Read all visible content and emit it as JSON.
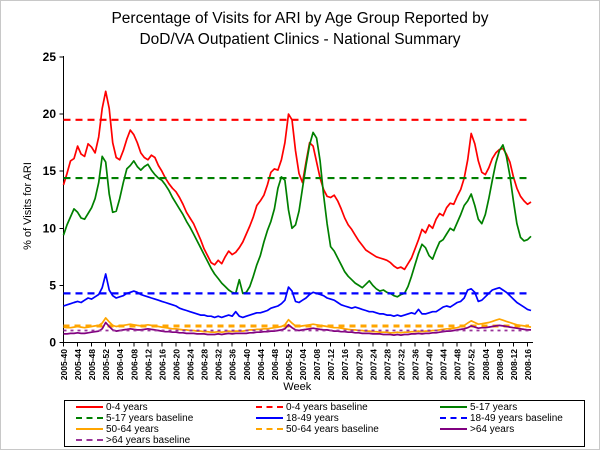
{
  "title": {
    "full": "Percentage of Visits for ARI by Age Group Reported by DoD/VA Outpatient Clinics - National Summary",
    "line1": "Percentage of Visits for ARI by Age Group Reported by",
    "line2": "DoD/VA Outpatient Clinics - National Summary"
  },
  "chart_data": {
    "type": "line",
    "title": "Percentage of Visits for ARI by Age Group Reported by DoD/VA Outpatient Clinics - National Summary",
    "xlabel": "Week",
    "ylabel": "% of Visits for ARI",
    "ylim": [
      0,
      25
    ],
    "y_ticks": [
      0,
      5,
      10,
      15,
      20,
      25
    ],
    "x_start_week": "2005-40",
    "x_end_week": "2008-17",
    "x_tick_every_weeks": 4,
    "x_tick_labels": [
      "2005-40",
      "2005-44",
      "2005-48",
      "2005-52",
      "2006-04",
      "2006-08",
      "2006-12",
      "2006-16",
      "2006-20",
      "2006-24",
      "2006-28",
      "2006-32",
      "2006-36",
      "2006-40",
      "2006-44",
      "2006-48",
      "2006-52",
      "2007-04",
      "2007-08",
      "2007-12",
      "2007-16",
      "2007-20",
      "2007-24",
      "2007-28",
      "2007-32",
      "2007-36",
      "2007-40",
      "2007-44",
      "2007-48",
      "2007-52",
      "2008-04",
      "2008-08",
      "2008-12",
      "2008-16"
    ],
    "grid": false,
    "legend_position": "bottom",
    "series": [
      {
        "name": "0-4 years",
        "color": "#FF0000",
        "style": "solid",
        "values": [
          13.8,
          14.8,
          15.9,
          16.1,
          17.2,
          16.5,
          16.3,
          17.4,
          17.1,
          16.6,
          18.0,
          20.5,
          22.0,
          20.5,
          17.5,
          16.2,
          16.0,
          16.8,
          17.8,
          18.6,
          18.2,
          17.5,
          16.6,
          16.2,
          16.0,
          16.4,
          16.2,
          15.5,
          15.0,
          14.4,
          13.9,
          13.5,
          13.2,
          12.7,
          12.1,
          11.4,
          10.9,
          10.4,
          9.7,
          9.0,
          8.2,
          7.6,
          7.0,
          6.8,
          7.2,
          6.9,
          7.5,
          8.0,
          7.7,
          7.9,
          8.3,
          8.8,
          9.5,
          10.2,
          11.0,
          12.0,
          12.4,
          12.9,
          13.8,
          14.9,
          15.2,
          15.1,
          16.0,
          17.5,
          20.0,
          19.5,
          16.8,
          14.8,
          14.0,
          15.8,
          17.5,
          17.2,
          15.8,
          14.4,
          13.4,
          12.8,
          12.7,
          12.9,
          12.4,
          11.7,
          10.9,
          10.3,
          9.9,
          9.4,
          8.9,
          8.5,
          8.1,
          7.9,
          7.7,
          7.5,
          7.4,
          7.3,
          7.2,
          7.0,
          6.7,
          6.5,
          6.6,
          6.4,
          6.9,
          7.4,
          8.2,
          9.0,
          9.9,
          9.6,
          10.3,
          10.0,
          10.8,
          11.3,
          11.1,
          11.8,
          12.2,
          12.1,
          12.8,
          13.4,
          14.4,
          16.0,
          18.3,
          17.4,
          15.9,
          14.9,
          14.7,
          15.3,
          16.1,
          16.6,
          16.9,
          17.0,
          16.5,
          15.8,
          14.5,
          13.5,
          12.8,
          12.4,
          12.1,
          12.3
        ]
      },
      {
        "name": "5-17 years",
        "color": "#008000",
        "style": "solid",
        "values": [
          9.4,
          10.3,
          11.0,
          11.7,
          11.4,
          10.9,
          10.8,
          11.3,
          11.8,
          12.6,
          14.0,
          16.3,
          15.8,
          13.0,
          11.4,
          11.5,
          12.6,
          14.0,
          15.2,
          15.5,
          15.9,
          15.4,
          15.1,
          15.4,
          15.6,
          15.1,
          14.7,
          14.4,
          14.2,
          13.8,
          13.3,
          12.7,
          12.2,
          11.7,
          11.2,
          10.6,
          10.1,
          9.5,
          8.9,
          8.3,
          7.7,
          7.1,
          6.5,
          6.0,
          5.6,
          5.2,
          4.9,
          4.6,
          4.4,
          4.3,
          5.5,
          4.3,
          4.4,
          4.9,
          5.8,
          6.8,
          7.6,
          8.8,
          9.8,
          10.6,
          11.7,
          13.5,
          14.5,
          14.2,
          11.6,
          10.0,
          10.3,
          11.5,
          13.5,
          15.5,
          17.3,
          18.4,
          17.9,
          15.9,
          12.9,
          10.4,
          8.4,
          8.0,
          7.4,
          6.8,
          6.2,
          5.8,
          5.5,
          5.2,
          5.0,
          4.8,
          5.1,
          5.4,
          5.0,
          4.7,
          4.5,
          4.6,
          4.4,
          4.3,
          4.1,
          4.0,
          4.2,
          4.3,
          4.9,
          5.8,
          6.8,
          7.8,
          8.6,
          8.3,
          7.6,
          7.3,
          8.1,
          8.8,
          9.0,
          9.5,
          10.0,
          9.8,
          10.5,
          11.2,
          12.0,
          12.4,
          13.0,
          12.0,
          10.8,
          10.4,
          11.2,
          12.6,
          14.2,
          15.7,
          16.8,
          17.3,
          16.3,
          14.6,
          12.4,
          10.4,
          9.2,
          8.9,
          9.0,
          9.3
        ]
      },
      {
        "name": "18-49 years",
        "color": "#0000FF",
        "style": "solid",
        "values": [
          3.2,
          3.3,
          3.4,
          3.5,
          3.6,
          3.5,
          3.7,
          3.9,
          3.8,
          4.0,
          4.2,
          4.8,
          6.0,
          4.6,
          4.1,
          3.9,
          4.0,
          4.1,
          4.3,
          4.4,
          4.5,
          4.4,
          4.2,
          4.1,
          4.0,
          3.9,
          3.8,
          3.7,
          3.6,
          3.5,
          3.4,
          3.3,
          3.2,
          3.0,
          2.9,
          2.8,
          2.7,
          2.6,
          2.5,
          2.4,
          2.4,
          2.3,
          2.3,
          2.2,
          2.3,
          2.2,
          2.3,
          2.4,
          2.3,
          2.7,
          2.3,
          2.2,
          2.3,
          2.4,
          2.5,
          2.6,
          2.6,
          2.7,
          2.8,
          3.0,
          3.1,
          3.2,
          3.4,
          3.7,
          4.85,
          4.5,
          3.6,
          3.5,
          3.7,
          3.9,
          4.2,
          4.4,
          4.3,
          4.2,
          4.1,
          3.9,
          3.8,
          3.7,
          3.5,
          3.3,
          3.2,
          3.1,
          3.0,
          3.1,
          3.0,
          2.9,
          2.8,
          2.7,
          2.7,
          2.6,
          2.5,
          2.5,
          2.4,
          2.4,
          2.3,
          2.4,
          2.3,
          2.4,
          2.5,
          2.6,
          2.5,
          2.9,
          2.5,
          2.5,
          2.6,
          2.7,
          2.7,
          2.9,
          3.1,
          3.2,
          3.1,
          3.3,
          3.5,
          3.6,
          3.9,
          4.6,
          4.7,
          4.4,
          3.6,
          3.7,
          4.0,
          4.3,
          4.6,
          4.7,
          4.8,
          4.6,
          4.4,
          4.1,
          3.8,
          3.5,
          3.3,
          3.1,
          2.9,
          2.8
        ]
      },
      {
        "name": "50-64 years",
        "color": "#FFA500",
        "style": "solid",
        "values": [
          1.35,
          1.3,
          1.3,
          1.35,
          1.4,
          1.35,
          1.3,
          1.35,
          1.4,
          1.45,
          1.5,
          1.7,
          2.15,
          1.8,
          1.5,
          1.4,
          1.45,
          1.5,
          1.55,
          1.6,
          1.55,
          1.5,
          1.45,
          1.5,
          1.55,
          1.5,
          1.45,
          1.4,
          1.35,
          1.3,
          1.25,
          1.2,
          1.2,
          1.15,
          1.1,
          1.1,
          1.05,
          1.05,
          1.0,
          1.0,
          0.95,
          0.95,
          0.9,
          0.9,
          0.95,
          0.9,
          0.95,
          1.0,
          0.95,
          1.0,
          1.0,
          1.0,
          1.05,
          1.1,
          1.1,
          1.15,
          1.15,
          1.2,
          1.2,
          1.25,
          1.3,
          1.35,
          1.4,
          1.55,
          2.0,
          1.7,
          1.45,
          1.4,
          1.45,
          1.5,
          1.55,
          1.6,
          1.55,
          1.5,
          1.45,
          1.4,
          1.35,
          1.3,
          1.3,
          1.25,
          1.2,
          1.15,
          1.1,
          1.1,
          1.05,
          1.05,
          1.0,
          1.0,
          0.95,
          0.95,
          0.9,
          0.9,
          0.9,
          0.85,
          0.85,
          0.9,
          0.85,
          0.9,
          0.9,
          0.95,
          0.95,
          1.0,
          0.95,
          1.0,
          1.0,
          1.05,
          1.05,
          1.1,
          1.15,
          1.2,
          1.2,
          1.25,
          1.3,
          1.4,
          1.5,
          1.7,
          1.9,
          1.75,
          1.6,
          1.65,
          1.7,
          1.75,
          1.85,
          1.95,
          2.05,
          1.95,
          1.85,
          1.75,
          1.65,
          1.55,
          1.5,
          1.45,
          1.4,
          1.35
        ]
      },
      {
        "name": ">64 years",
        "color": "#800080",
        "style": "solid",
        "values": [
          0.75,
          0.75,
          0.8,
          0.8,
          0.85,
          0.8,
          0.8,
          0.85,
          0.9,
          0.95,
          1.0,
          1.2,
          1.75,
          1.4,
          1.1,
          1.0,
          1.05,
          1.1,
          1.15,
          1.2,
          1.15,
          1.1,
          1.1,
          1.15,
          1.2,
          1.15,
          1.1,
          1.05,
          1.0,
          0.95,
          0.95,
          0.9,
          0.9,
          0.85,
          0.85,
          0.8,
          0.8,
          0.8,
          0.75,
          0.75,
          0.75,
          0.7,
          0.7,
          0.7,
          0.75,
          0.7,
          0.75,
          0.8,
          0.75,
          0.8,
          0.8,
          0.8,
          0.8,
          0.85,
          0.85,
          0.9,
          0.9,
          0.95,
          0.95,
          1.0,
          1.0,
          1.05,
          1.1,
          1.2,
          1.55,
          1.3,
          1.1,
          1.05,
          1.1,
          1.15,
          1.2,
          1.25,
          1.2,
          1.15,
          1.1,
          1.1,
          1.05,
          1.0,
          1.0,
          0.95,
          0.95,
          0.9,
          0.9,
          0.85,
          0.85,
          0.8,
          0.8,
          0.8,
          0.75,
          0.75,
          0.75,
          0.7,
          0.7,
          0.7,
          0.65,
          0.7,
          0.65,
          0.7,
          0.7,
          0.75,
          0.75,
          0.8,
          0.75,
          0.8,
          0.8,
          0.85,
          0.85,
          0.9,
          0.95,
          1.0,
          1.0,
          1.05,
          1.1,
          1.15,
          1.2,
          1.3,
          1.45,
          1.35,
          1.25,
          1.3,
          1.3,
          1.35,
          1.4,
          1.45,
          1.5,
          1.45,
          1.4,
          1.35,
          1.3,
          1.25,
          1.2,
          1.15,
          1.1,
          1.1
        ]
      }
    ],
    "baselines": [
      {
        "name": "0-4 years baseline",
        "color": "#FF0000",
        "value": 19.5
      },
      {
        "name": "5-17 years baseline",
        "color": "#008000",
        "value": 14.4
      },
      {
        "name": "18-49 years baseline",
        "color": "#0000FF",
        "value": 4.3
      },
      {
        "name": "50-64 years baseline",
        "color": "#FFA500",
        "value": 1.45
      },
      {
        "name": ">64 years baseline",
        "color": "#993399",
        "value": 1.05
      }
    ],
    "legend": [
      {
        "label": "0-4 years",
        "color": "#FF0000",
        "style": "solid"
      },
      {
        "label": "0-4 years baseline",
        "color": "#FF0000",
        "style": "dashed"
      },
      {
        "label": "5-17 years",
        "color": "#008000",
        "style": "solid"
      },
      {
        "label": "5-17 years baseline",
        "color": "#008000",
        "style": "dashed"
      },
      {
        "label": "18-49 years",
        "color": "#0000FF",
        "style": "solid"
      },
      {
        "label": "18-49 years baseline",
        "color": "#0000FF",
        "style": "dashed"
      },
      {
        "label": "50-64 years",
        "color": "#FFA500",
        "style": "solid"
      },
      {
        "label": "50-64 years baseline",
        "color": "#FFA500",
        "style": "dashed"
      },
      {
        "label": ">64 years",
        "color": "#800080",
        "style": "solid"
      },
      {
        "label": ">64 years baseline",
        "color": "#993399",
        "style": "dashed"
      }
    ]
  }
}
